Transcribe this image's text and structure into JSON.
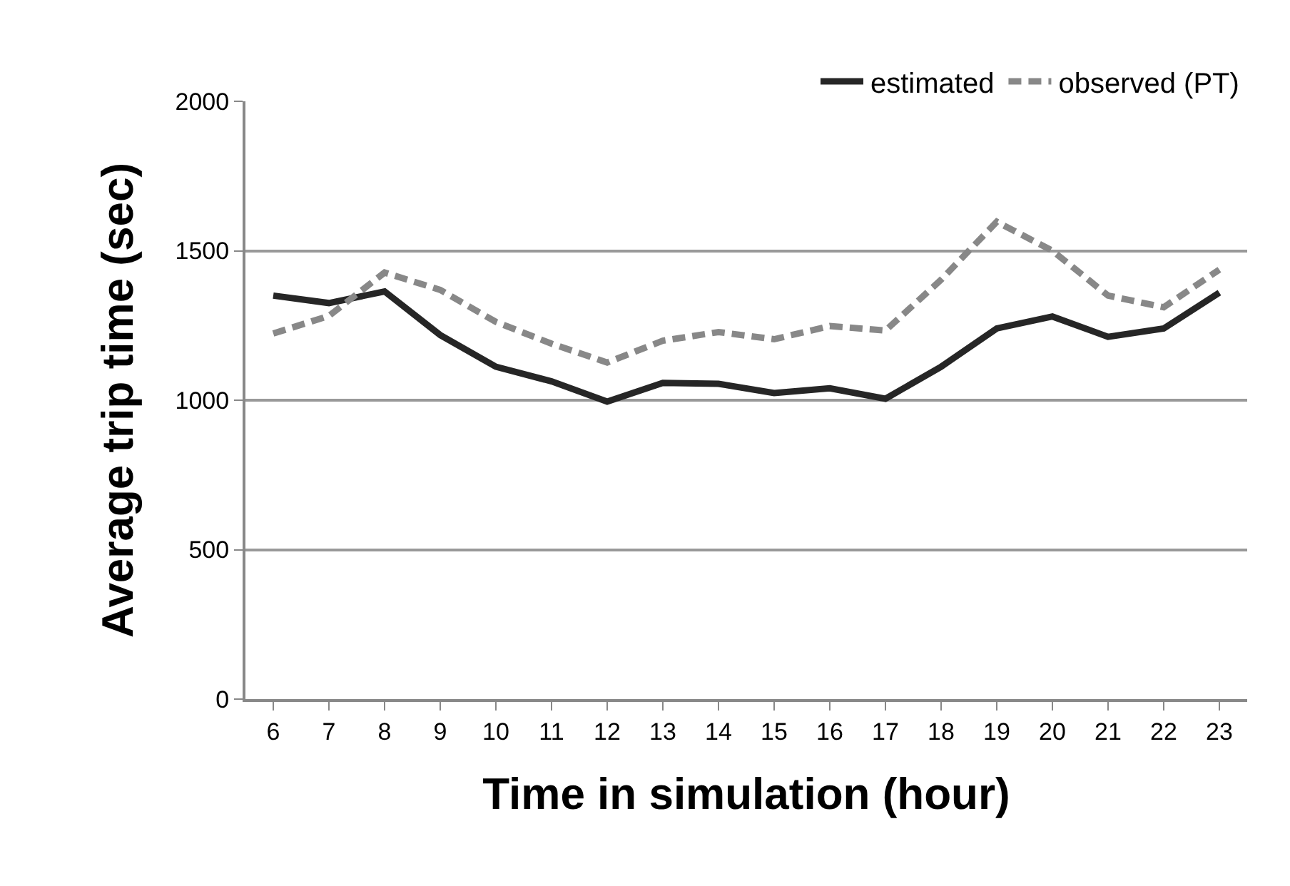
{
  "chart_data": {
    "type": "line",
    "xlabel": "Time in simulation (hour)",
    "ylabel": "Average trip time (sec)",
    "categories": [
      "6",
      "7",
      "8",
      "9",
      "10",
      "11",
      "12",
      "13",
      "14",
      "15",
      "16",
      "17",
      "18",
      "19",
      "20",
      "21",
      "22",
      "23"
    ],
    "series": [
      {
        "name": "estimated",
        "color": "#262626",
        "line_style": "solid",
        "values": [
          1350,
          1325,
          1364,
          1218,
          1112,
          1063,
          995,
          1058,
          1055,
          1024,
          1040,
          1005,
          1112,
          1240,
          1280,
          1212,
          1240,
          1360
        ]
      },
      {
        "name": "observed (PT)",
        "color": "#888888",
        "line_style": "dashed",
        "values": [
          1223,
          1282,
          1427,
          1369,
          1262,
          1189,
          1126,
          1199,
          1228,
          1204,
          1248,
          1233,
          1403,
          1597,
          1500,
          1350,
          1311,
          1437
        ]
      }
    ],
    "ylim": [
      0,
      2000
    ],
    "yticks": [
      0,
      500,
      1000,
      1500,
      2000
    ],
    "grid": "y",
    "legend": "top right",
    "marker": "none"
  }
}
